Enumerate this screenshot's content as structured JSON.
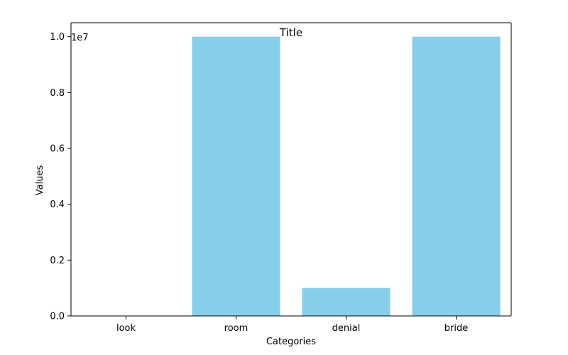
{
  "chart_data": {
    "type": "bar",
    "title": "Title",
    "xlabel": "Categories",
    "ylabel": "Values",
    "categories": [
      "look",
      "room",
      "denial",
      "bride"
    ],
    "values": [
      1,
      10000000,
      1000000,
      10000000
    ],
    "ylim": [
      0,
      10500000
    ],
    "y_ticks": [
      0,
      2000000,
      4000000,
      6000000,
      8000000,
      10000000
    ],
    "y_tick_labels": [
      "0.0",
      "0.2",
      "0.4",
      "0.6",
      "0.8",
      "1.0"
    ],
    "y_offset_label": "1e7",
    "bar_color": "#87CEEB",
    "grid": false
  }
}
